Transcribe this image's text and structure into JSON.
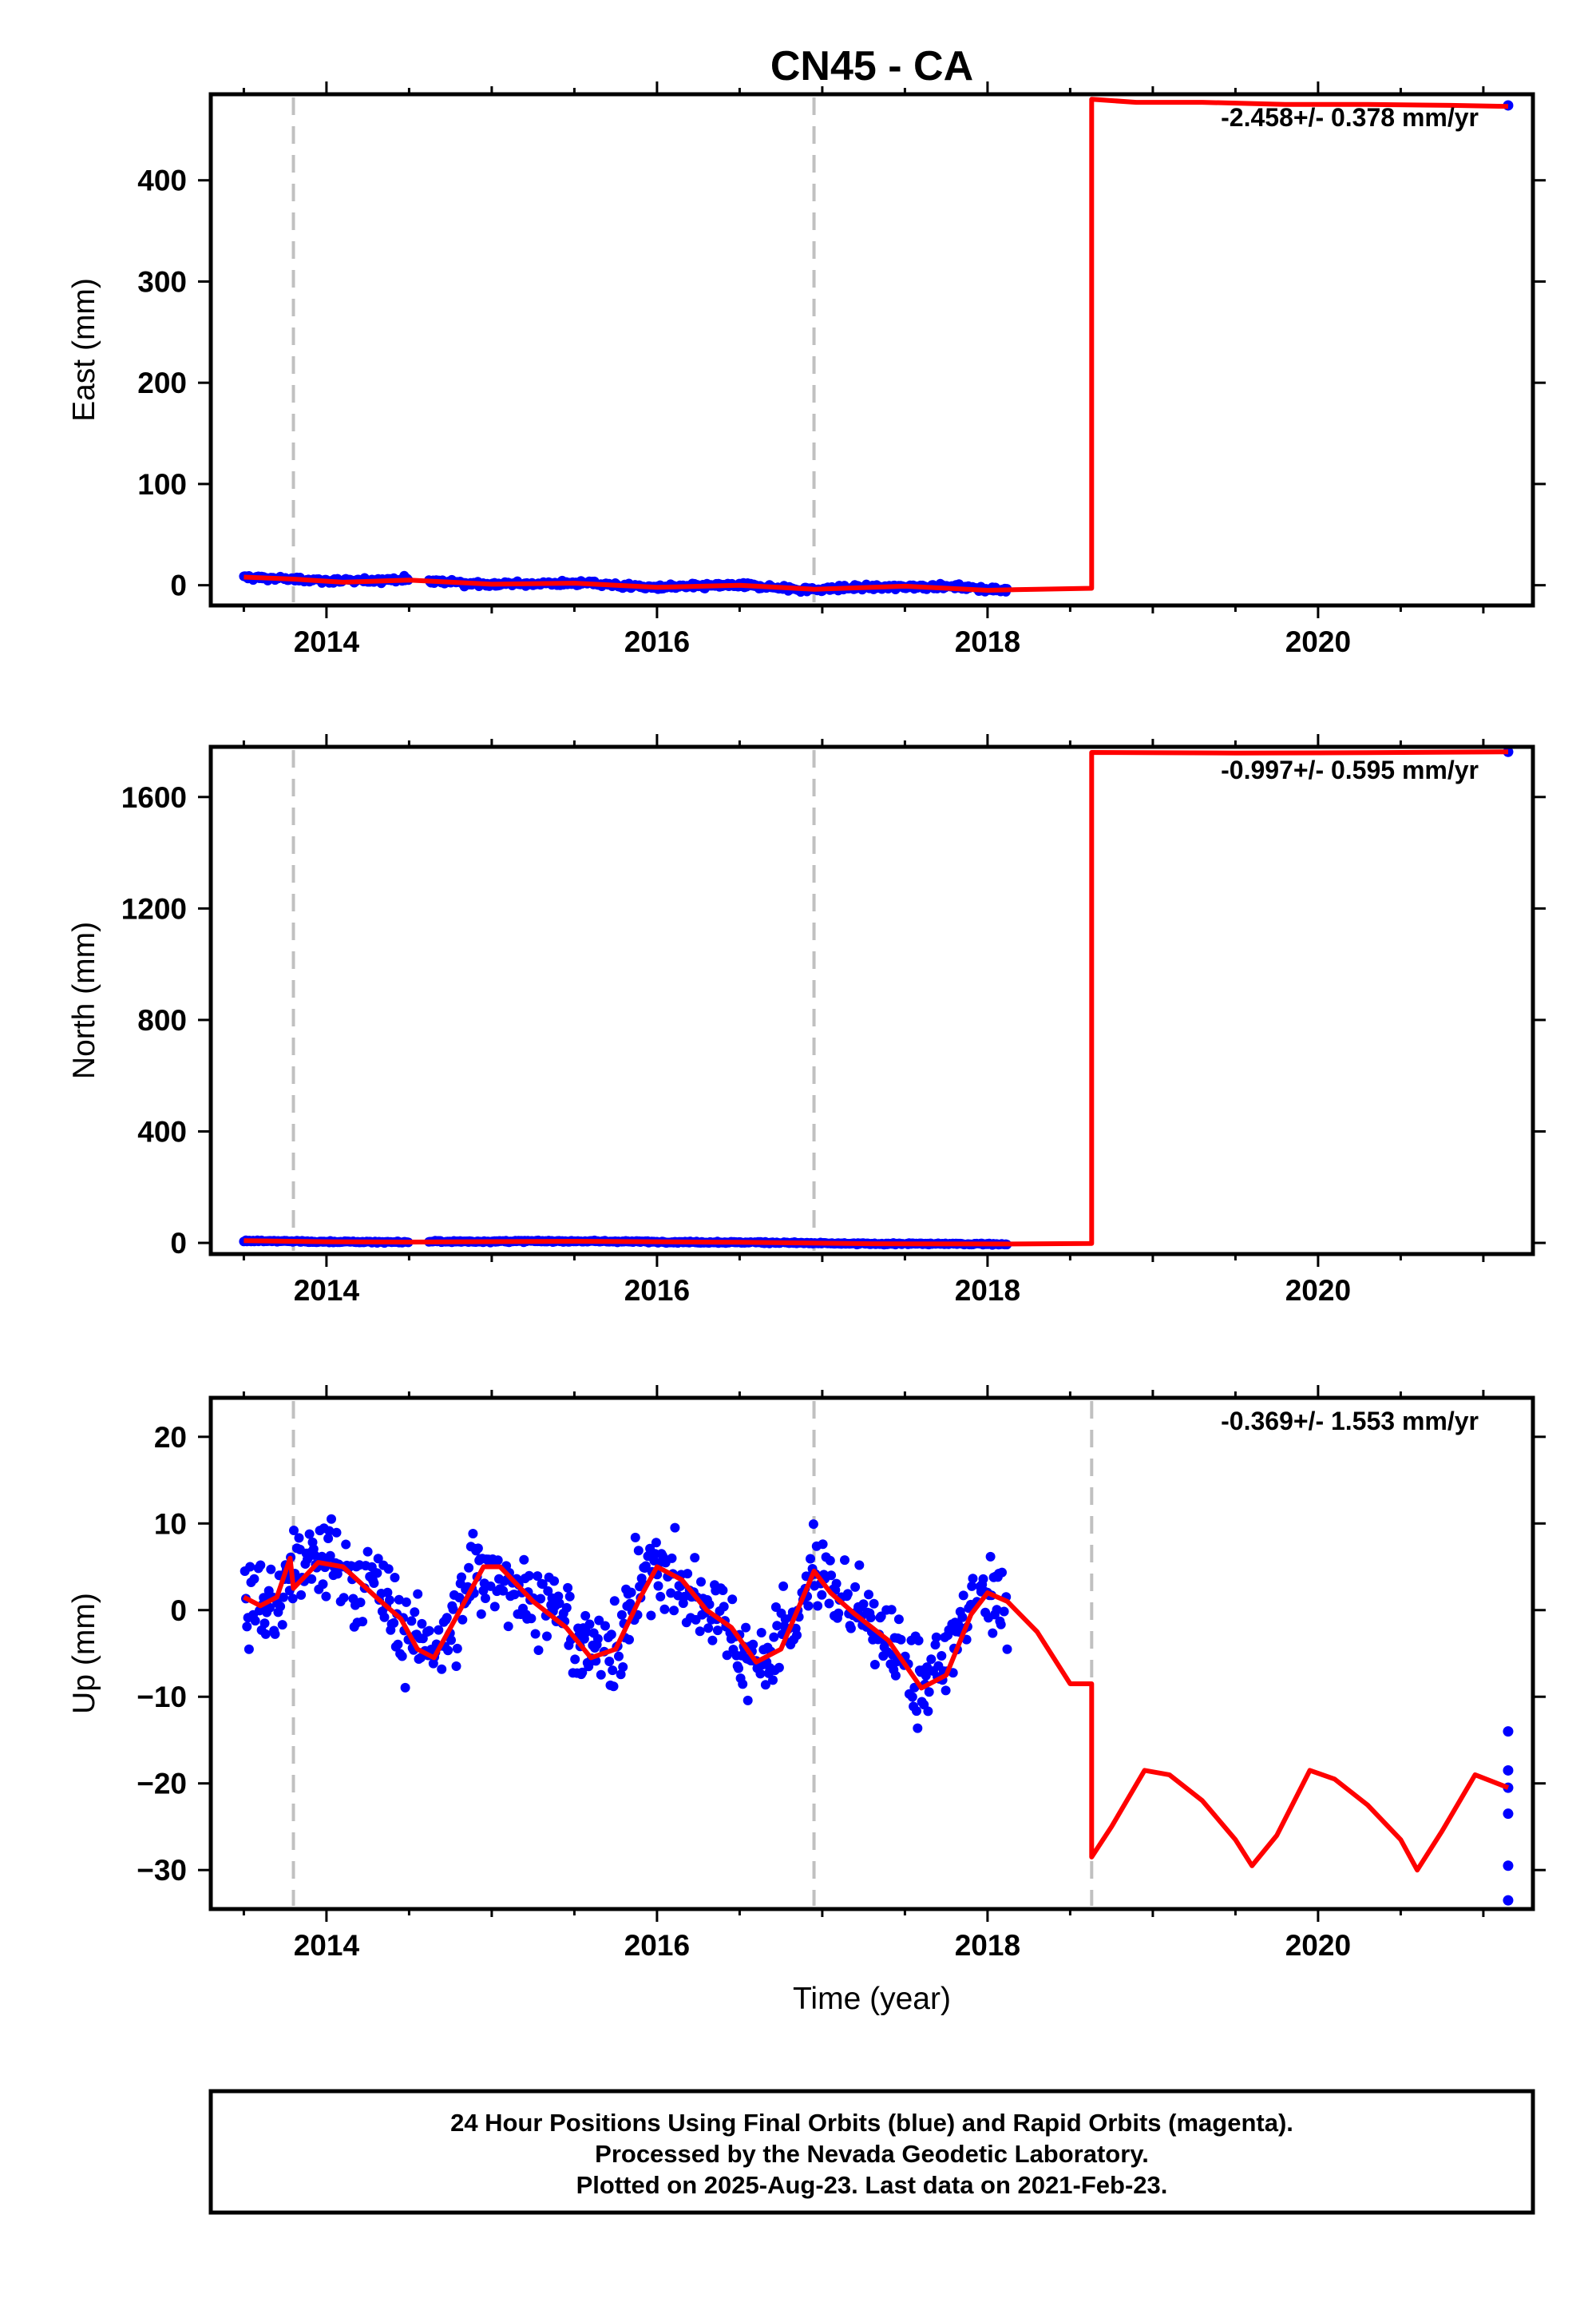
{
  "title": "CN45 - CA",
  "xlabel": "Time (year)",
  "footer": [
    "24 Hour Positions Using Final Orbits (blue) and Rapid Orbits (magenta).",
    "Processed by the Nevada Geodetic Laboratory.",
    "Plotted on 2025-Aug-23. Last data on 2021-Feb-23."
  ],
  "colors": {
    "data_points": "#0000ff",
    "model_fit": "#ff0000",
    "event_lines": "#c0c0c0"
  },
  "chart_data": [
    {
      "type": "scatter",
      "ylabel": "East (mm)",
      "xlim": [
        2013.3,
        2021.3
      ],
      "ylim": [
        -20,
        485
      ],
      "xticks": [
        2014,
        2016,
        2018,
        2020
      ],
      "xtick_labels": [
        "2014",
        "2016",
        "2018",
        "2020"
      ],
      "yticks": [
        0,
        100,
        200,
        300,
        400
      ],
      "ytick_labels": [
        "0",
        "100",
        "200",
        "300",
        "400"
      ],
      "rate_label": "-2.458+/- 0.378 mm/yr",
      "event_lines_x": [
        2013.8,
        2016.95
      ],
      "data_series": {
        "name": "",
        "segments": [
          {
            "start": 2013.5,
            "end": 2014.5,
            "base": [
              [
                2013.5,
                8
              ],
              [
                2013.8,
                6
              ],
              [
                2014.1,
                4
              ],
              [
                2014.5,
                6
              ]
            ],
            "noise": 2.5
          },
          {
            "start": 2014.62,
            "end": 2018.12,
            "base": [
              [
                2014.62,
                4
              ],
              [
                2015.0,
                1
              ],
              [
                2015.5,
                2
              ],
              [
                2016.0,
                -2
              ],
              [
                2016.5,
                0
              ],
              [
                2016.9,
                -4
              ],
              [
                2017.3,
                -2
              ],
              [
                2017.7,
                -1
              ],
              [
                2018.12,
                -5
              ]
            ],
            "noise": 2.5
          }
        ],
        "extra_points": [
          [
            2021.15,
            474
          ]
        ]
      },
      "fit_series": {
        "name": "",
        "points": [
          [
            2013.5,
            8
          ],
          [
            2013.8,
            6
          ],
          [
            2014.1,
            3
          ],
          [
            2014.5,
            5
          ],
          [
            2015.0,
            1
          ],
          [
            2015.5,
            2
          ],
          [
            2016.0,
            -2
          ],
          [
            2016.5,
            0
          ],
          [
            2016.95,
            -4
          ],
          [
            2017.5,
            -1
          ],
          [
            2018.0,
            -5
          ],
          [
            2018.3,
            -4
          ],
          [
            2018.63,
            -3
          ],
          [
            2018.63,
            480
          ],
          [
            2018.9,
            477
          ],
          [
            2019.3,
            477
          ],
          [
            2019.8,
            475
          ],
          [
            2020.3,
            475
          ],
          [
            2020.8,
            474
          ],
          [
            2021.15,
            473
          ]
        ]
      }
    },
    {
      "type": "scatter",
      "ylabel": "North (mm)",
      "xlim": [
        2013.3,
        2021.3
      ],
      "ylim": [
        -40,
        1780
      ],
      "xticks": [
        2014,
        2016,
        2018,
        2020
      ],
      "xtick_labels": [
        "2014",
        "2016",
        "2018",
        "2020"
      ],
      "yticks": [
        0,
        400,
        800,
        1200,
        1600
      ],
      "ytick_labels": [
        "0",
        "400",
        "800",
        "1200",
        "1600"
      ],
      "rate_label": "-0.997+/- 0.595 mm/yr",
      "event_lines_x": [
        2013.8,
        2016.95
      ],
      "data_series": {
        "name": "",
        "segments": [
          {
            "start": 2013.5,
            "end": 2014.5,
            "base": [
              [
                2013.5,
                8
              ],
              [
                2014.0,
                4
              ],
              [
                2014.5,
                3
              ]
            ],
            "noise": 3
          },
          {
            "start": 2014.62,
            "end": 2018.12,
            "base": [
              [
                2014.62,
                5
              ],
              [
                2015.5,
                6
              ],
              [
                2016.5,
                2
              ],
              [
                2017.3,
                -3
              ],
              [
                2018.12,
                -4
              ]
            ],
            "noise": 3
          }
        ],
        "extra_points": [
          [
            2021.15,
            1762
          ]
        ]
      },
      "fit_series": {
        "name": "",
        "points": [
          [
            2013.5,
            8
          ],
          [
            2014.0,
            4
          ],
          [
            2014.5,
            3
          ],
          [
            2015.5,
            6
          ],
          [
            2016.5,
            2
          ],
          [
            2017.3,
            -3
          ],
          [
            2018.12,
            -4
          ],
          [
            2018.63,
            -2
          ],
          [
            2018.63,
            1760
          ],
          [
            2019.5,
            1758
          ],
          [
            2020.3,
            1759
          ],
          [
            2021.15,
            1762
          ]
        ]
      }
    },
    {
      "type": "scatter",
      "ylabel": "Up (mm)",
      "xlabel": "Time (year)",
      "xlim": [
        2013.3,
        2021.3
      ],
      "ylim": [
        -34.5,
        24.5
      ],
      "xticks": [
        2014,
        2016,
        2018,
        2020
      ],
      "xtick_labels": [
        "2014",
        "2016",
        "2018",
        "2020"
      ],
      "yticks": [
        -30,
        -20,
        -10,
        0,
        10,
        20
      ],
      "ytick_labels": [
        "−30",
        "−20",
        "−10",
        "0",
        "10",
        "20"
      ],
      "rate_label": "-0.369+/- 1.553 mm/yr",
      "event_lines_x": [
        2013.8,
        2016.95,
        2018.63
      ],
      "data_series": {
        "name": "",
        "segments": [
          {
            "start": 2013.5,
            "end": 2018.12,
            "base": [
              [
                2013.5,
                1
              ],
              [
                2013.7,
                1
              ],
              [
                2013.8,
                5
              ],
              [
                2014.0,
                6
              ],
              [
                2014.3,
                2
              ],
              [
                2014.55,
                -4
              ],
              [
                2014.7,
                -3
              ],
              [
                2014.95,
                5
              ],
              [
                2015.3,
                1
              ],
              [
                2015.6,
                -5
              ],
              [
                2015.75,
                -3
              ],
              [
                2015.95,
                5
              ],
              [
                2016.3,
                1
              ],
              [
                2016.6,
                -6
              ],
              [
                2016.8,
                -2
              ],
              [
                2016.95,
                4
              ],
              [
                2017.3,
                -1
              ],
              [
                2017.6,
                -9
              ],
              [
                2017.75,
                -5
              ],
              [
                2017.95,
                2
              ],
              [
                2018.12,
                0
              ]
            ],
            "noise": 5
          }
        ],
        "extra_points": [
          [
            2021.15,
            -14
          ],
          [
            2021.15,
            -18.5
          ],
          [
            2021.15,
            -20.5
          ],
          [
            2021.15,
            -23.5
          ],
          [
            2021.15,
            -29.5
          ],
          [
            2021.15,
            -33.5
          ]
        ]
      },
      "fit_series": {
        "name": "",
        "points": [
          [
            2013.5,
            1.5
          ],
          [
            2013.6,
            0.5
          ],
          [
            2013.7,
            1.5
          ],
          [
            2013.78,
            6
          ],
          [
            2013.8,
            2.5
          ],
          [
            2013.95,
            5.5
          ],
          [
            2014.1,
            5
          ],
          [
            2014.3,
            1.5
          ],
          [
            2014.45,
            -1
          ],
          [
            2014.55,
            -4.5
          ],
          [
            2014.65,
            -5.5
          ],
          [
            2014.78,
            -1
          ],
          [
            2014.95,
            5
          ],
          [
            2015.05,
            5
          ],
          [
            2015.25,
            1
          ],
          [
            2015.45,
            -2
          ],
          [
            2015.6,
            -5.5
          ],
          [
            2015.75,
            -4.5
          ],
          [
            2015.9,
            1.5
          ],
          [
            2016.0,
            5
          ],
          [
            2016.15,
            3.5
          ],
          [
            2016.3,
            0
          ],
          [
            2016.45,
            -2
          ],
          [
            2016.6,
            -6
          ],
          [
            2016.75,
            -4.5
          ],
          [
            2016.95,
            4.5
          ],
          [
            2017.05,
            2
          ],
          [
            2017.2,
            -0.5
          ],
          [
            2017.4,
            -3.5
          ],
          [
            2017.6,
            -9
          ],
          [
            2017.75,
            -7.5
          ],
          [
            2017.9,
            -0.5
          ],
          [
            2018.0,
            2
          ],
          [
            2018.12,
            1
          ],
          [
            2018.3,
            -2.5
          ],
          [
            2018.5,
            -8.5
          ],
          [
            2018.63,
            -8.5
          ],
          [
            2018.63,
            -28.5
          ],
          [
            2018.75,
            -25
          ],
          [
            2018.95,
            -18.5
          ],
          [
            2019.1,
            -19
          ],
          [
            2019.3,
            -22
          ],
          [
            2019.5,
            -26.5
          ],
          [
            2019.6,
            -29.5
          ],
          [
            2019.75,
            -26
          ],
          [
            2019.95,
            -18.5
          ],
          [
            2020.1,
            -19.5
          ],
          [
            2020.3,
            -22.5
          ],
          [
            2020.5,
            -26.5
          ],
          [
            2020.6,
            -30
          ],
          [
            2020.75,
            -25.5
          ],
          [
            2020.95,
            -19
          ],
          [
            2021.15,
            -20.5
          ]
        ]
      }
    }
  ]
}
